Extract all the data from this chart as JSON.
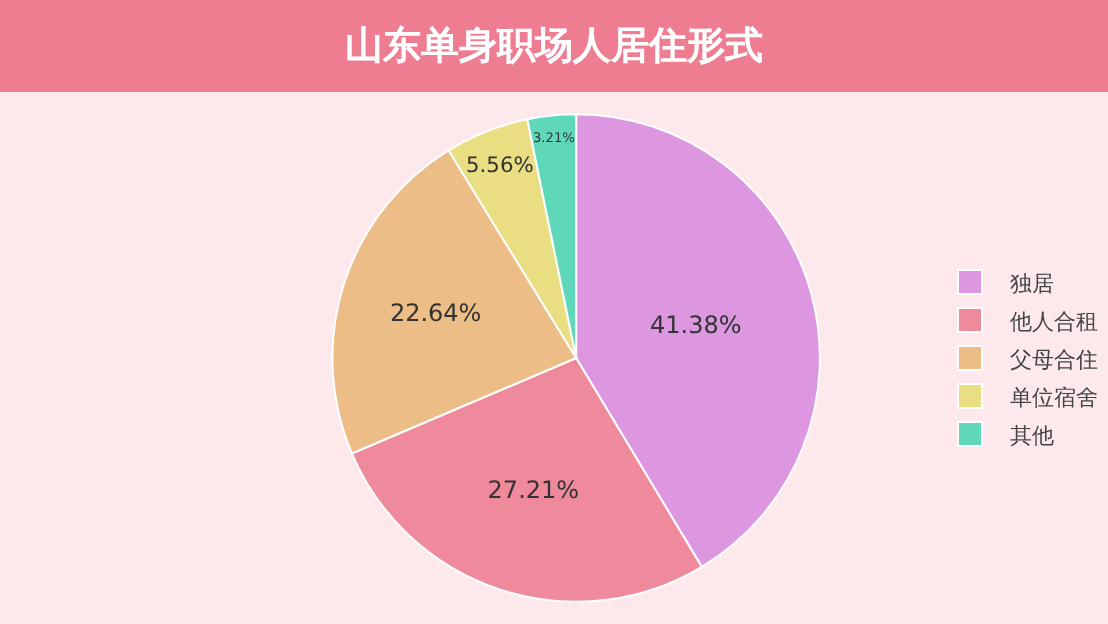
{
  "chart_data": {
    "type": "pie",
    "title": "山东单身职场人居住形式",
    "categories": [
      "独居",
      "他人合租",
      "父母合住",
      "单位宿舍",
      "其他"
    ],
    "values": [
      41.38,
      27.21,
      22.64,
      5.56,
      3.21
    ],
    "value_labels": [
      "41.38%",
      "27.21%",
      "22.64%",
      "5.56%",
      "3.21%"
    ],
    "colors": [
      "#dd96e0",
      "#ee8a9c",
      "#ecbd86",
      "#e9de82",
      "#5ed8b8"
    ],
    "legend": "right"
  }
}
